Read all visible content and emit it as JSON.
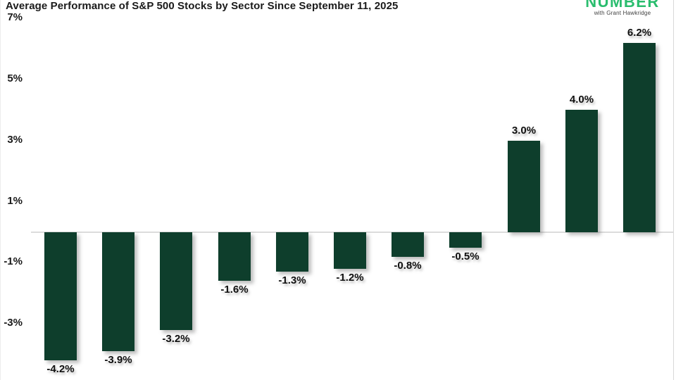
{
  "title": "Average Performance of S&P 500 Stocks by Sector Since September 11, 2025",
  "logo": {
    "brand": "NUMBER",
    "tagline": "with Grant Hawkridge",
    "brand_color": "#2abd6e"
  },
  "chart_data": {
    "type": "bar",
    "title": "Average Performance of S&P 500 Stocks by Sector Since September 11, 2025",
    "values": [
      -4.2,
      -3.9,
      -3.2,
      -1.6,
      -1.3,
      -1.2,
      -0.8,
      -0.5,
      3.0,
      4.0,
      6.2
    ],
    "bar_labels": [
      "-4.2%",
      "-3.9%",
      "-3.2%",
      "-1.6%",
      "-1.3%",
      "-1.2%",
      "-0.8%",
      "-0.5%",
      "3.0%",
      "4.0%",
      "6.2%"
    ],
    "y_ticks": [
      {
        "value": 7,
        "label": "7%"
      },
      {
        "value": 5,
        "label": "5%"
      },
      {
        "value": 3,
        "label": "3%"
      },
      {
        "value": 1,
        "label": "1%"
      },
      {
        "value": -1,
        "label": "-1%"
      },
      {
        "value": -3,
        "label": "-3%"
      }
    ],
    "ylim": [
      -5,
      7
    ],
    "xlabel": "",
    "ylabel": "",
    "grid": false,
    "legend": false,
    "bar_color": "#0e3e2c",
    "baseline_color": "#dcdcdc"
  }
}
